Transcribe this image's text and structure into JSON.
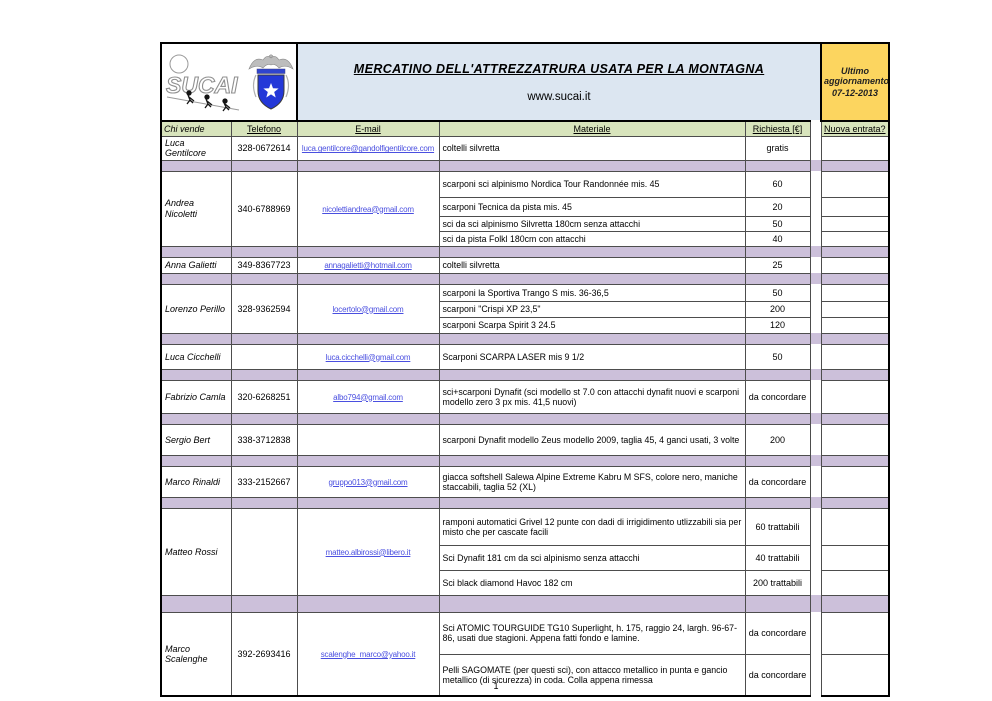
{
  "banner": {
    "logo_text": "SUCAI",
    "title": "MERCATINO DELL'ATTREZZATRURA USATA PER LA MONTAGNA",
    "website": "www.sucai.it",
    "update_label": "Ultimo aggiornamento:",
    "update_date": "07-12-2013"
  },
  "icons": {
    "logo": "sucai-climbers-logo",
    "crest": "eagle-shield-star-crest"
  },
  "columns": [
    "Chi vende",
    "Telefono",
    "E-mail",
    "Materiale",
    "Richiesta [€]",
    "Nuova entrata?"
  ],
  "sellers": [
    {
      "name": "Luca Gentilcore",
      "phone": "328-0672614",
      "email": "luca.gentilcore@gandolfigentilcore.com",
      "items": [
        {
          "material": "coltelli silvretta",
          "price": "gratis"
        }
      ]
    },
    {
      "name": "Andrea Nicoletti",
      "phone": "340-6788969",
      "email": "nicolettiandrea@gmail.com",
      "items": [
        {
          "material": "scarponi sci alpinismo Nordica Tour Randonnée mis. 45",
          "price": "60"
        },
        {
          "material": "scarponi Tecnica da pista mis. 45",
          "price": "20"
        },
        {
          "material": "sci da sci alpinismo Silvretta 180cm senza attacchi",
          "price": "50"
        },
        {
          "material": "sci da pista Folkl 180cm con attacchi",
          "price": "40"
        }
      ]
    },
    {
      "name": "Anna Galietti",
      "phone": "349-8367723",
      "email": "annagalietti@hotmail.com",
      "items": [
        {
          "material": "coltelli silvretta",
          "price": "25"
        }
      ]
    },
    {
      "name": "Lorenzo Perillo",
      "phone": "328-9362594",
      "email": "locertolo@gmail.com",
      "items": [
        {
          "material": "scarponi la Sportiva Trango S mis. 36-36,5",
          "price": "50"
        },
        {
          "material": "scarponi \"Crispi XP 23,5\"",
          "price": "200"
        },
        {
          "material": "scarponi Scarpa Spirit 3 24.5",
          "price": "120"
        }
      ]
    },
    {
      "name": "Luca Cicchelli",
      "phone": "",
      "email": "luca.cicchelli@gmail.com",
      "items": [
        {
          "material": "Scarponi SCARPA LASER mis 9 1/2",
          "price": "50"
        }
      ]
    },
    {
      "name": "Fabrizio Camla",
      "phone": "320-6268251",
      "email": "albo794@gmail.com",
      "items": [
        {
          "material": "sci+scarponi Dynafit (sci modello st 7.0 con attacchi dynafit nuovi e scarponi modello zero 3 px mis. 41,5 nuovi)",
          "price": "da concordare"
        }
      ]
    },
    {
      "name": "Sergio Bert",
      "phone": "338-3712838",
      "email": "",
      "items": [
        {
          "material": "scarponi Dynafit modello Zeus modello 2009, taglia 45, 4 ganci usati, 3 volte",
          "price": "200"
        }
      ]
    },
    {
      "name": "Marco Rinaldi",
      "phone": "333-2152667",
      "email": "gruppo013@gmail.com",
      "items": [
        {
          "material": "giacca softshell Salewa Alpine Extreme Kabru M SFS, colore nero, maniche staccabili, taglia 52 (XL)",
          "price": "da concordare"
        }
      ]
    },
    {
      "name": "Matteo Rossi",
      "phone": "",
      "email": "matteo.albirossi@libero.it",
      "items": [
        {
          "material": "ramponi automatici Grivel 12 punte con dadi di irrigidimento utlizzabili sia per misto che per cascate facili",
          "price": "60 trattabili"
        },
        {
          "material": "Sci Dynafit 181 cm da sci alpinismo senza attacchi",
          "price": "40 trattabili"
        },
        {
          "material": "Sci black diamond Havoc 182 cm",
          "price": "200 trattabili"
        }
      ]
    },
    {
      "name": "Marco Scalenghe",
      "phone": "392-2693416",
      "email": "scalenghe_marco@yahoo.it",
      "items": [
        {
          "material": "Sci ATOMIC TOURGUIDE TG10 Superlight, h. 175, raggio 24, largh. 96-67-86, usati due stagioni. Appena fatti fondo e lamine.",
          "price": "da concordare"
        },
        {
          "material": "Pelli SAGOMATE (per questi sci), con attacco metallico in punta e gancio metallico (di sicurezza) in coda. Colla appena rimessa",
          "price": "da concordare"
        }
      ]
    }
  ],
  "page": {
    "number": "1"
  },
  "colors": {
    "banner_blue": "#dce6f1",
    "update_yellow": "#fcd55f",
    "header_green": "#d8e4bc",
    "separator_purple": "#ccc0da",
    "link_blue": "#4a4fe0",
    "shield_blue": "#2438d8"
  }
}
